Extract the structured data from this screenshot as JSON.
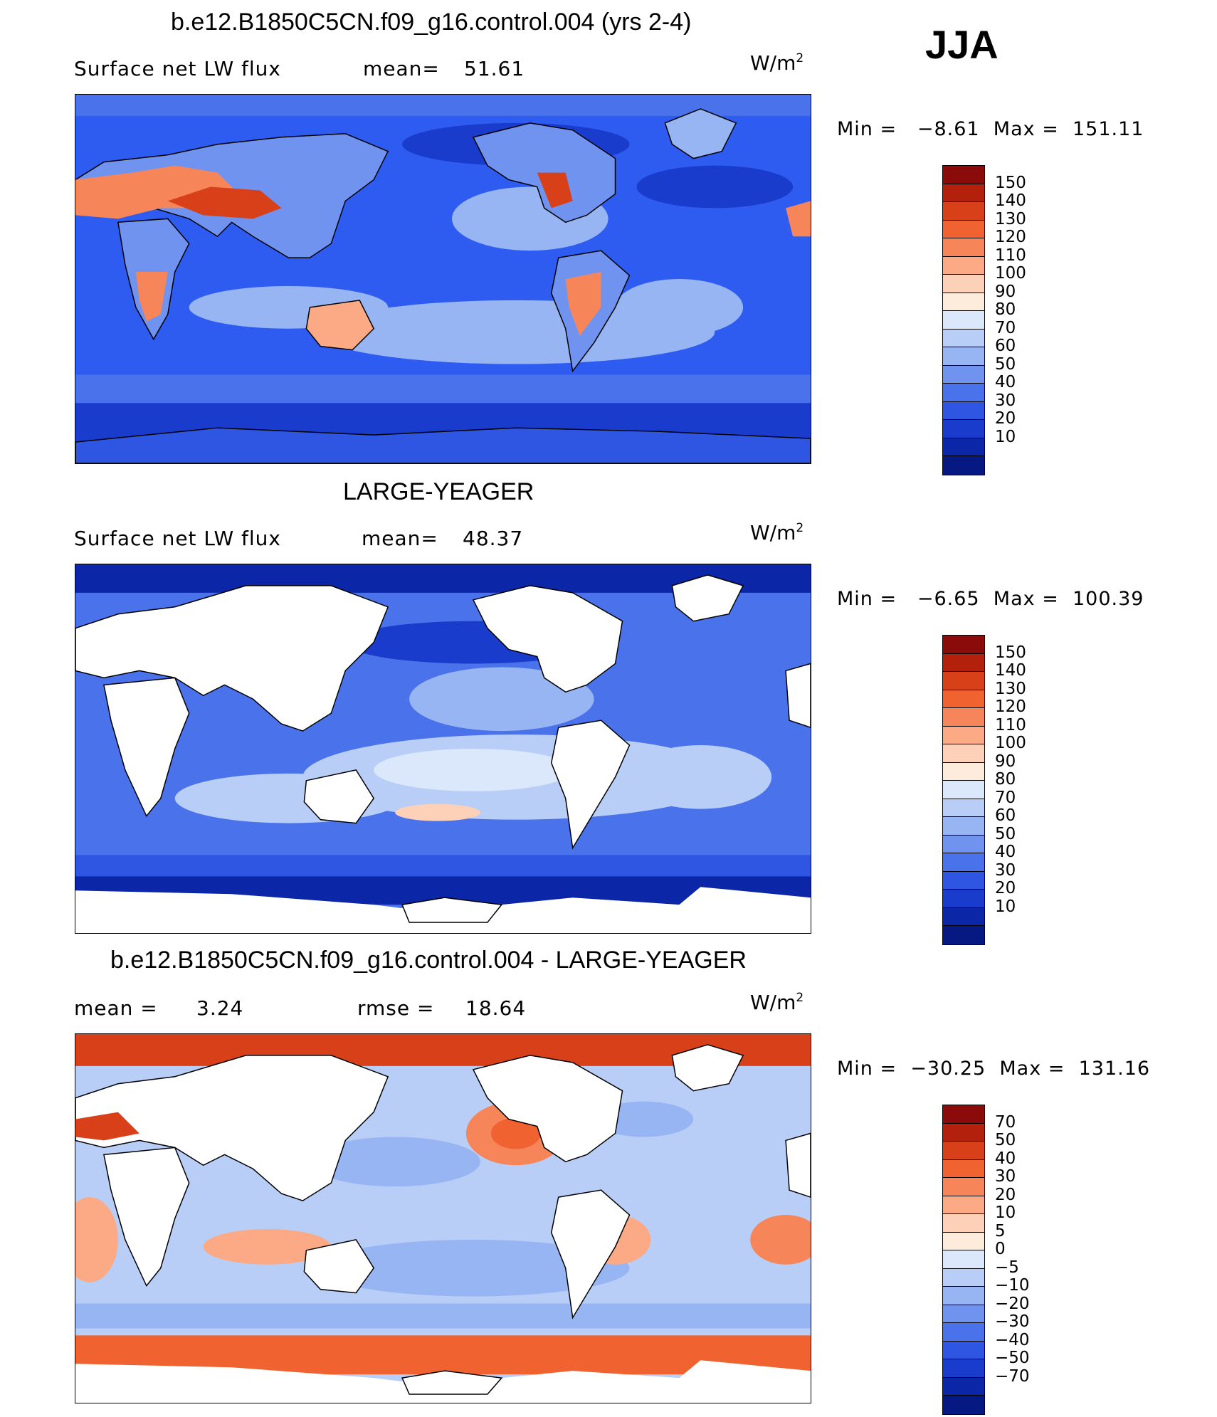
{
  "season": "JJA",
  "units": {
    "base": "W/m",
    "exp": "2"
  },
  "palette": {
    "ocean_base": "#2e5cf0",
    "land_blank": "#ffffff",
    "coastline": "#000000",
    "deep_blue": "#0a1f9e",
    "light_blue": "#9cb8f5",
    "pale_blue": "#d3e4fb",
    "pale_red": "#fbd3c4",
    "warm_red": "#ef6a3a",
    "strong_red": "#d8401a"
  },
  "panels": [
    {
      "title": "b.e12.B1850C5CN.f09_g16.control.004 (yrs 2-4)",
      "left_label": "Surface net LW flux",
      "stat_label": "mean=",
      "stat_value": "51.61",
      "min_label": "Min =",
      "min_value": "−8.61",
      "max_label": "Max =",
      "max_value": "151.11",
      "map_name": "model-map",
      "land_filled": true,
      "colorbar": {
        "colors": [
          "#8b0a0a",
          "#b3200c",
          "#d8401a",
          "#f0622f",
          "#f7855a",
          "#fbaa85",
          "#fdd0b8",
          "#fdebdc",
          "#dbe8fb",
          "#b8cef7",
          "#97b4f3",
          "#6f93ef",
          "#4a72ea",
          "#2f56e3",
          "#1a3ccc",
          "#0c26a8",
          "#061882"
        ],
        "labels": [
          "150",
          "140",
          "130",
          "120",
          "110",
          "100",
          "90",
          "80",
          "70",
          "60",
          "50",
          "40",
          "30",
          "20",
          "10"
        ]
      }
    },
    {
      "title": "LARGE-YEAGER",
      "left_label": "Surface net LW flux",
      "stat_label": "mean=",
      "stat_value": "48.37",
      "min_label": "Min =",
      "min_value": "−6.65",
      "max_label": "Max =",
      "max_value": "100.39",
      "map_name": "obs-map",
      "land_filled": false,
      "colorbar": {
        "colors": [
          "#8b0a0a",
          "#b3200c",
          "#d8401a",
          "#f0622f",
          "#f7855a",
          "#fbaa85",
          "#fdd0b8",
          "#fdebdc",
          "#dbe8fb",
          "#b8cef7",
          "#97b4f3",
          "#6f93ef",
          "#4a72ea",
          "#2f56e3",
          "#1a3ccc",
          "#0c26a8",
          "#061882"
        ],
        "labels": [
          "150",
          "140",
          "130",
          "120",
          "110",
          "100",
          "90",
          "80",
          "70",
          "60",
          "50",
          "40",
          "30",
          "20",
          "10"
        ]
      }
    },
    {
      "title": "b.e12.B1850C5CN.f09_g16.control.004 - LARGE-YEAGER",
      "left_label": "mean =",
      "left_value": "3.24",
      "stat_label": "rmse =",
      "stat_value": "18.64",
      "min_label": "Min =",
      "min_value": "−30.25",
      "max_label": "Max =",
      "max_value": "131.16",
      "map_name": "difference-map",
      "land_filled": false,
      "colorbar": {
        "colors": [
          "#8b0a0a",
          "#b3200c",
          "#d8401a",
          "#f0622f",
          "#f7855a",
          "#fbaa85",
          "#fdd0b8",
          "#fdebdc",
          "#dbe8fb",
          "#b8cef7",
          "#97b4f3",
          "#6f93ef",
          "#4a72ea",
          "#2f56e3",
          "#1a3ccc",
          "#0c26a8",
          "#061882"
        ],
        "labels": [
          "70",
          "50",
          "40",
          "30",
          "20",
          "10",
          "5",
          "0",
          "−5",
          "−10",
          "−20",
          "−30",
          "−40",
          "−50",
          "−70"
        ]
      }
    }
  ]
}
